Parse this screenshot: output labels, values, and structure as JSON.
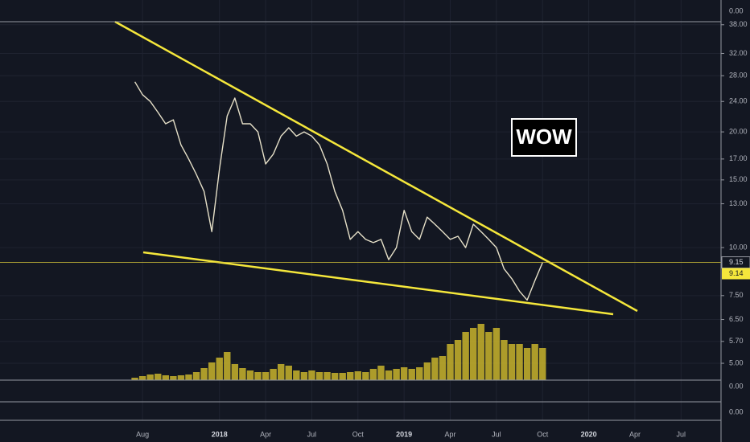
{
  "chart_data": {
    "type": "line",
    "log_y": true,
    "grid": true,
    "annotation": "WOW",
    "categories": [
      null,
      null,
      "Aug",
      null,
      null,
      null,
      null,
      null,
      null,
      null,
      null,
      null,
      "2018",
      null,
      null,
      null,
      null,
      null,
      "Apr",
      null,
      null,
      null,
      null,
      null,
      "Jul",
      null,
      null,
      null,
      null,
      null,
      "Oct",
      null,
      null,
      null,
      null,
      null,
      "2019",
      null,
      null,
      null,
      null,
      null,
      "Apr",
      null,
      null,
      null,
      null,
      null,
      "Jul",
      null,
      null,
      null,
      null,
      null,
      "Oct",
      null,
      null,
      null,
      null,
      null,
      "2020",
      null,
      null,
      null,
      null,
      null,
      "Apr",
      null,
      null,
      null,
      null,
      null,
      "Jul",
      null,
      null,
      null,
      null
    ],
    "values": [
      null,
      27,
      25,
      24,
      22.5,
      21,
      21.5,
      18.5,
      17,
      15.5,
      14,
      11,
      16,
      22,
      24.5,
      21,
      21,
      20,
      16.5,
      17.5,
      19.5,
      20.5,
      19.5,
      20,
      19.5,
      18.5,
      16.5,
      14,
      12.5,
      10.5,
      11,
      10.5,
      10.3,
      10.5,
      9.3,
      10,
      12.5,
      11,
      10.5,
      12,
      11.5,
      11,
      10.5,
      10.7,
      10,
      11.5,
      11,
      10.5,
      10,
      8.8,
      8.3,
      7.7,
      7.3,
      8.2,
      9.14,
      null,
      null,
      null,
      null,
      null,
      null,
      null,
      null,
      null,
      null,
      null,
      null,
      null,
      null,
      null,
      null,
      null,
      null,
      null,
      null,
      null,
      null
    ],
    "color": "#e6e0c8",
    "volume_values": [
      null,
      3,
      5,
      7,
      8,
      6,
      5,
      6,
      7,
      10,
      15,
      22,
      28,
      35,
      20,
      15,
      12,
      10,
      10,
      14,
      20,
      18,
      12,
      10,
      12,
      10,
      10,
      9,
      9,
      10,
      11,
      10,
      14,
      18,
      12,
      14,
      16,
      14,
      16,
      22,
      28,
      30,
      45,
      50,
      60,
      65,
      70,
      60,
      65,
      50,
      45,
      45,
      40,
      45,
      40,
      null,
      null,
      null,
      null,
      null,
      null,
      null,
      null,
      null,
      null,
      null,
      null,
      null,
      null,
      null,
      null,
      null,
      null,
      null,
      null,
      null,
      null
    ],
    "volume_color": "#c9b42c",
    "y2lim": [
      0,
      100
    ],
    "ylim": [
      4.52,
      38.7
    ],
    "yticks": [
      {
        "value": 38,
        "label": "38.00"
      },
      {
        "value": 32,
        "label": "32.00"
      },
      {
        "value": 28,
        "label": "28.00"
      },
      {
        "value": 24,
        "label": "24.00"
      },
      {
        "value": 20,
        "label": "20.00"
      },
      {
        "value": 17,
        "label": "17.00"
      },
      {
        "value": 15,
        "label": "15.00"
      },
      {
        "value": 13,
        "label": "13.00"
      },
      {
        "value": 10,
        "label": "10.00"
      },
      {
        "value": 7.5,
        "label": "7.50"
      },
      {
        "value": 6.5,
        "label": "6.50"
      },
      {
        "value": 5.7,
        "label": "5.70"
      },
      {
        "value": 5,
        "label": "5.00"
      }
    ],
    "last_price": {
      "value": 9.15,
      "label": "9.15"
    },
    "last_close": {
      "value": 9.14,
      "label": "9.14"
    },
    "pane_labels": [
      "0.00",
      "0.00",
      "0.00"
    ]
  }
}
